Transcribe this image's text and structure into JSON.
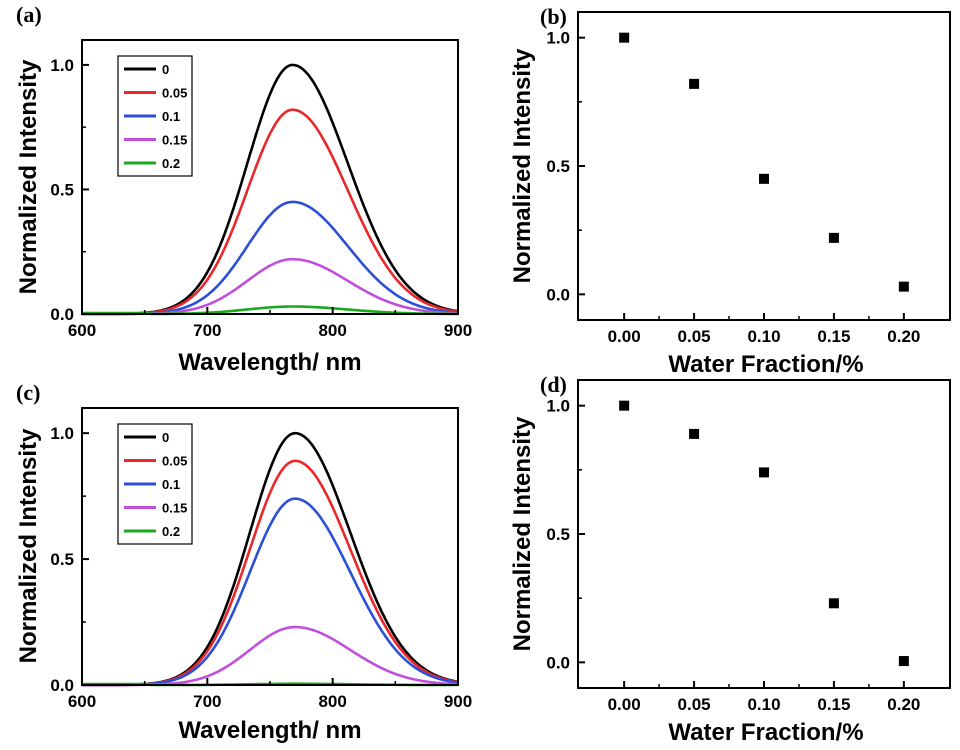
{
  "chart_data": [
    {
      "panel": "(a)",
      "type": "line",
      "xlabel": "Wavelength/ nm",
      "ylabel": "Normalized Intensity",
      "xlim": [
        600,
        900
      ],
      "ylim": [
        0,
        1.1
      ],
      "xticks": [
        "600",
        "700",
        "800",
        "900"
      ],
      "yticks": [
        "0.0",
        "0.5",
        "1.0"
      ],
      "legend_position": "top-left",
      "peak_x": 768,
      "series": [
        {
          "name": "0",
          "color": "#000000",
          "peak": 1.0
        },
        {
          "name": "0.05",
          "color": "#e8282a",
          "peak": 0.82
        },
        {
          "name": "0.1",
          "color": "#2b4fd8",
          "peak": 0.45
        },
        {
          "name": "0.15",
          "color": "#c050dc",
          "peak": 0.22
        },
        {
          "name": "0.2",
          "color": "#1caa1c",
          "peak": 0.03
        }
      ]
    },
    {
      "panel": "(b)",
      "type": "scatter",
      "xlabel": "Water Fraction/%",
      "ylabel": "Normalized Intensity",
      "xlim": [
        -0.033,
        0.233
      ],
      "ylim": [
        -0.1,
        1.1
      ],
      "xticks": [
        "0.00",
        "0.05",
        "0.10",
        "0.15",
        "0.20"
      ],
      "yticks": [
        "0.0",
        "0.5",
        "1.0"
      ],
      "x": [
        0.0,
        0.05,
        0.1,
        0.15,
        0.2
      ],
      "y": [
        1.0,
        0.82,
        0.45,
        0.22,
        0.03
      ]
    },
    {
      "panel": "(c)",
      "type": "line",
      "xlabel": "Wavelength/ nm",
      "ylabel": "Normalized Intensity",
      "xlim": [
        600,
        900
      ],
      "ylim": [
        0,
        1.1
      ],
      "xticks": [
        "600",
        "700",
        "800",
        "900"
      ],
      "yticks": [
        "0.0",
        "0.5",
        "1.0"
      ],
      "legend_position": "top-left",
      "peak_x": 770,
      "series": [
        {
          "name": "0",
          "color": "#000000",
          "peak": 1.0
        },
        {
          "name": "0.05",
          "color": "#e8282a",
          "peak": 0.89
        },
        {
          "name": "0.1",
          "color": "#2b4fd8",
          "peak": 0.74
        },
        {
          "name": "0.15",
          "color": "#c050dc",
          "peak": 0.23
        },
        {
          "name": "0.2",
          "color": "#1caa1c",
          "peak": 0.005
        }
      ]
    },
    {
      "panel": "(d)",
      "type": "scatter",
      "xlabel": "Water Fraction/%",
      "ylabel": "Normalized Intensity",
      "xlim": [
        -0.033,
        0.233
      ],
      "ylim": [
        -0.1,
        1.1
      ],
      "xticks": [
        "0.00",
        "0.05",
        "0.10",
        "0.15",
        "0.20"
      ],
      "yticks": [
        "0.0",
        "0.5",
        "1.0"
      ],
      "x": [
        0.0,
        0.05,
        0.1,
        0.15,
        0.2
      ],
      "y": [
        1.0,
        0.89,
        0.74,
        0.23,
        0.005
      ]
    }
  ]
}
